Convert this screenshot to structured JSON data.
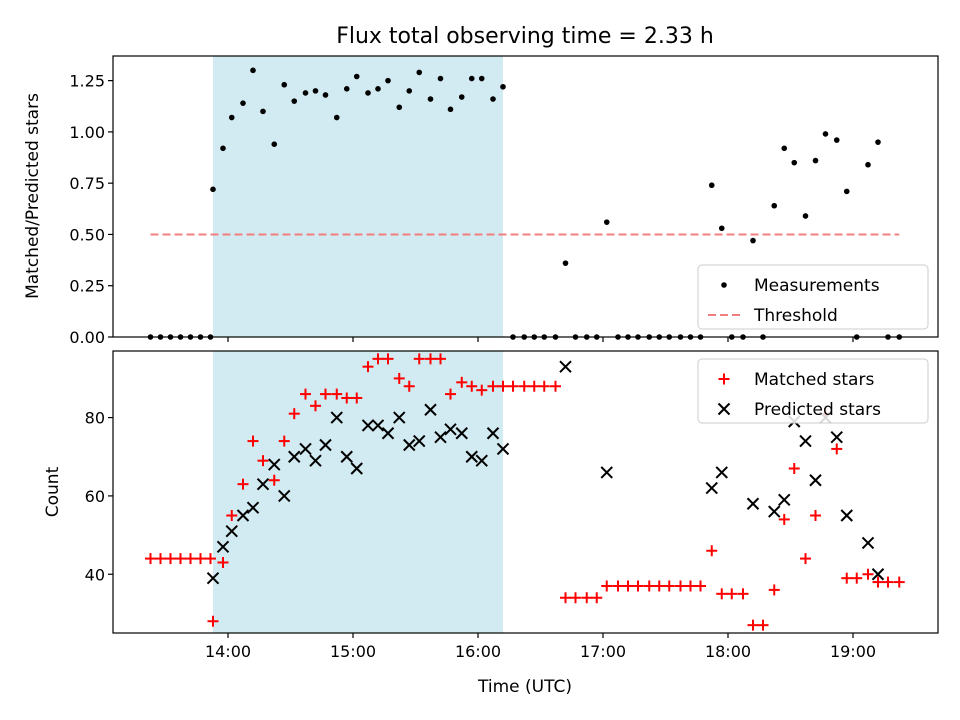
{
  "chart_data": [
    {
      "type": "scatter",
      "title": "Flux total observing time = 2.33 h",
      "ylabel": "Matched/Predicted stars",
      "xlabel": "",
      "xlim": [
        13.08,
        19.68
      ],
      "ylim": [
        0,
        1.37
      ],
      "yticks": [
        0,
        0.25,
        0.5,
        0.75,
        1.0,
        1.25
      ],
      "ytick_labels": [
        "0.00",
        "0.25",
        "0.50",
        "0.75",
        "1.00",
        "1.25"
      ],
      "xticks": [
        14,
        15,
        16,
        17,
        18,
        19
      ],
      "shaded_span": [
        13.88,
        16.2
      ],
      "shaded_color": "#add8e6",
      "legend_position": "lower-right",
      "series": [
        {
          "name": "Measurements",
          "marker": "dot",
          "color": "#000000",
          "points": [
            [
              13.38,
              0
            ],
            [
              13.46,
              0
            ],
            [
              13.54,
              0
            ],
            [
              13.62,
              0
            ],
            [
              13.7,
              0
            ],
            [
              13.78,
              0
            ],
            [
              13.86,
              0
            ],
            [
              13.88,
              0.72
            ],
            [
              13.96,
              0.92
            ],
            [
              14.03,
              1.07
            ],
            [
              14.12,
              1.14
            ],
            [
              14.2,
              1.3
            ],
            [
              14.28,
              1.1
            ],
            [
              14.37,
              0.94
            ],
            [
              14.45,
              1.23
            ],
            [
              14.53,
              1.15
            ],
            [
              14.62,
              1.19
            ],
            [
              14.7,
              1.2
            ],
            [
              14.78,
              1.18
            ],
            [
              14.87,
              1.07
            ],
            [
              14.95,
              1.21
            ],
            [
              15.03,
              1.27
            ],
            [
              15.12,
              1.19
            ],
            [
              15.2,
              1.21
            ],
            [
              15.28,
              1.25
            ],
            [
              15.37,
              1.12
            ],
            [
              15.45,
              1.2
            ],
            [
              15.53,
              1.29
            ],
            [
              15.62,
              1.16
            ],
            [
              15.7,
              1.26
            ],
            [
              15.78,
              1.11
            ],
            [
              15.87,
              1.17
            ],
            [
              15.95,
              1.26
            ],
            [
              16.03,
              1.26
            ],
            [
              16.12,
              1.16
            ],
            [
              16.2,
              1.22
            ],
            [
              16.28,
              0
            ],
            [
              16.37,
              0
            ],
            [
              16.45,
              0
            ],
            [
              16.53,
              0
            ],
            [
              16.62,
              0
            ],
            [
              16.7,
              0.36
            ],
            [
              16.78,
              0
            ],
            [
              16.87,
              0
            ],
            [
              16.95,
              0
            ],
            [
              17.03,
              0.56
            ],
            [
              17.12,
              0
            ],
            [
              17.2,
              0
            ],
            [
              17.28,
              0
            ],
            [
              17.37,
              0
            ],
            [
              17.45,
              0
            ],
            [
              17.53,
              0
            ],
            [
              17.62,
              0
            ],
            [
              17.7,
              0
            ],
            [
              17.78,
              0
            ],
            [
              17.87,
              0.74
            ],
            [
              17.95,
              0.53
            ],
            [
              18.03,
              0
            ],
            [
              18.12,
              0
            ],
            [
              18.2,
              0.47
            ],
            [
              18.28,
              0
            ],
            [
              18.37,
              0.64
            ],
            [
              18.45,
              0.92
            ],
            [
              18.53,
              0.85
            ],
            [
              18.62,
              0.59
            ],
            [
              18.7,
              0.86
            ],
            [
              18.78,
              0.99
            ],
            [
              18.87,
              0.96
            ],
            [
              18.95,
              0.71
            ],
            [
              19.03,
              0
            ],
            [
              19.12,
              0.84
            ],
            [
              19.2,
              0.95
            ],
            [
              19.28,
              0
            ],
            [
              19.37,
              0
            ]
          ]
        },
        {
          "name": "Threshold",
          "marker": "dashed-line",
          "color": "#f08080",
          "points": [
            [
              13.38,
              0.5
            ],
            [
              19.37,
              0.5
            ]
          ]
        }
      ]
    },
    {
      "type": "scatter",
      "title": "",
      "ylabel": "Count",
      "xlabel": "Time (UTC)",
      "xlim": [
        13.08,
        19.68
      ],
      "ylim": [
        25,
        97
      ],
      "yticks": [
        40,
        60,
        80
      ],
      "ytick_labels": [
        "40",
        "60",
        "80"
      ],
      "xticks": [
        14,
        15,
        16,
        17,
        18,
        19
      ],
      "xtick_labels": [
        "14:00",
        "15:00",
        "16:00",
        "17:00",
        "18:00",
        "19:00"
      ],
      "shaded_span": [
        13.88,
        16.2
      ],
      "shaded_color": "#add8e6",
      "legend_position": "upper-right",
      "series": [
        {
          "name": "Matched stars",
          "marker": "plus",
          "color": "#ff0000",
          "points": [
            [
              13.38,
              44
            ],
            [
              13.46,
              44
            ],
            [
              13.54,
              44
            ],
            [
              13.62,
              44
            ],
            [
              13.7,
              44
            ],
            [
              13.78,
              44
            ],
            [
              13.86,
              44
            ],
            [
              13.88,
              28
            ],
            [
              13.96,
              43
            ],
            [
              14.03,
              55
            ],
            [
              14.12,
              63
            ],
            [
              14.2,
              74
            ],
            [
              14.28,
              69
            ],
            [
              14.37,
              64
            ],
            [
              14.45,
              74
            ],
            [
              14.53,
              81
            ],
            [
              14.62,
              86
            ],
            [
              14.7,
              83
            ],
            [
              14.78,
              86
            ],
            [
              14.87,
              86
            ],
            [
              14.95,
              85
            ],
            [
              15.03,
              85
            ],
            [
              15.12,
              93
            ],
            [
              15.2,
              95
            ],
            [
              15.28,
              95
            ],
            [
              15.37,
              90
            ],
            [
              15.45,
              88
            ],
            [
              15.53,
              95
            ],
            [
              15.62,
              95
            ],
            [
              15.7,
              95
            ],
            [
              15.78,
              86
            ],
            [
              15.87,
              89
            ],
            [
              15.95,
              88
            ],
            [
              16.03,
              87
            ],
            [
              16.12,
              88
            ],
            [
              16.2,
              88
            ],
            [
              16.28,
              88
            ],
            [
              16.37,
              88
            ],
            [
              16.45,
              88
            ],
            [
              16.53,
              88
            ],
            [
              16.62,
              88
            ],
            [
              16.7,
              34
            ],
            [
              16.78,
              34
            ],
            [
              16.87,
              34
            ],
            [
              16.95,
              34
            ],
            [
              17.03,
              37
            ],
            [
              17.12,
              37
            ],
            [
              17.2,
              37
            ],
            [
              17.28,
              37
            ],
            [
              17.37,
              37
            ],
            [
              17.45,
              37
            ],
            [
              17.53,
              37
            ],
            [
              17.62,
              37
            ],
            [
              17.7,
              37
            ],
            [
              17.78,
              37
            ],
            [
              17.87,
              46
            ],
            [
              17.95,
              35
            ],
            [
              18.03,
              35
            ],
            [
              18.12,
              35
            ],
            [
              18.2,
              27
            ],
            [
              18.28,
              27
            ],
            [
              18.37,
              36
            ],
            [
              18.45,
              54
            ],
            [
              18.53,
              67
            ],
            [
              18.62,
              44
            ],
            [
              18.7,
              55
            ],
            [
              18.78,
              81
            ],
            [
              18.87,
              72
            ],
            [
              18.95,
              39
            ],
            [
              19.03,
              39
            ],
            [
              19.12,
              40
            ],
            [
              19.2,
              38
            ],
            [
              19.28,
              38
            ],
            [
              19.37,
              38
            ]
          ]
        },
        {
          "name": "Predicted stars",
          "marker": "x",
          "color": "#000000",
          "points": [
            [
              13.88,
              39
            ],
            [
              13.96,
              47
            ],
            [
              14.03,
              51
            ],
            [
              14.12,
              55
            ],
            [
              14.2,
              57
            ],
            [
              14.28,
              63
            ],
            [
              14.37,
              68
            ],
            [
              14.45,
              60
            ],
            [
              14.53,
              70
            ],
            [
              14.62,
              72
            ],
            [
              14.7,
              69
            ],
            [
              14.78,
              73
            ],
            [
              14.87,
              80
            ],
            [
              14.95,
              70
            ],
            [
              15.03,
              67
            ],
            [
              15.12,
              78
            ],
            [
              15.2,
              78
            ],
            [
              15.28,
              76
            ],
            [
              15.37,
              80
            ],
            [
              15.45,
              73
            ],
            [
              15.53,
              74
            ],
            [
              15.62,
              82
            ],
            [
              15.7,
              75
            ],
            [
              15.78,
              77
            ],
            [
              15.87,
              76
            ],
            [
              15.95,
              70
            ],
            [
              16.03,
              69
            ],
            [
              16.12,
              76
            ],
            [
              16.2,
              72
            ],
            [
              16.7,
              93
            ],
            [
              17.03,
              66
            ],
            [
              17.87,
              62
            ],
            [
              17.95,
              66
            ],
            [
              18.2,
              58
            ],
            [
              18.37,
              56
            ],
            [
              18.45,
              59
            ],
            [
              18.53,
              79
            ],
            [
              18.62,
              74
            ],
            [
              18.7,
              64
            ],
            [
              18.78,
              80
            ],
            [
              18.87,
              75
            ],
            [
              18.95,
              55
            ],
            [
              19.12,
              48
            ],
            [
              19.2,
              40
            ]
          ]
        }
      ]
    }
  ]
}
